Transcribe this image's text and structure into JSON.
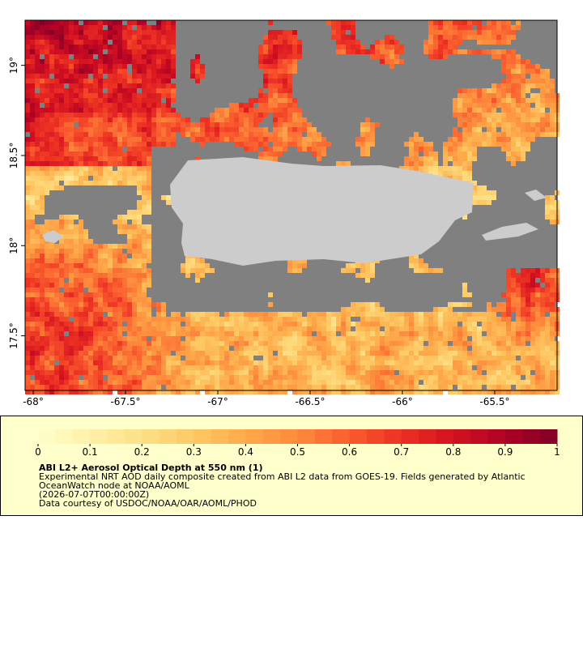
{
  "map": {
    "xlim": [
      -68.044,
      -65.162
    ],
    "ylim": [
      17.197,
      19.25
    ],
    "xticks": [
      {
        "value": -68,
        "label": "-68°"
      },
      {
        "value": -67.5,
        "label": "-67.5°"
      },
      {
        "value": -67,
        "label": "-67°"
      },
      {
        "value": -66.5,
        "label": "-66.5°"
      },
      {
        "value": -66,
        "label": "-66°"
      },
      {
        "value": -65.5,
        "label": "-65.5°"
      }
    ],
    "yticks": [
      {
        "value": 17.5,
        "label": "17.5°"
      },
      {
        "value": 18,
        "label": "18°"
      },
      {
        "value": 18.5,
        "label": "18.5°"
      },
      {
        "value": 19,
        "label": "19°"
      }
    ],
    "colorbar": {
      "lim": [
        0,
        1
      ],
      "ticks": [
        0,
        0.1,
        0.2,
        0.3,
        0.4,
        0.5,
        0.6,
        0.7,
        0.8,
        0.9,
        1
      ],
      "colors": [
        "#ffffcc",
        "#fff0a8",
        "#fee087",
        "#fec965",
        "#feab4b",
        "#fd893c",
        "#fa5c2e",
        "#ec3023",
        "#d31121",
        "#af0225",
        "#800026"
      ]
    },
    "legend": {
      "title": "ABI L2+ Aerosol Optical Depth at 550 nm (1)",
      "lines": [
        "Experimental NRT AOD daily composite created from ABI L2 data from GOES-19. Fields generated by Atlantic",
        "OceanWatch node at NOAA/AOML",
        "(2026-07-07T00:00:00Z)",
        "Data courtesy of USDOC/NOAA/OAR/AOML/PHOD"
      ]
    }
  }
}
